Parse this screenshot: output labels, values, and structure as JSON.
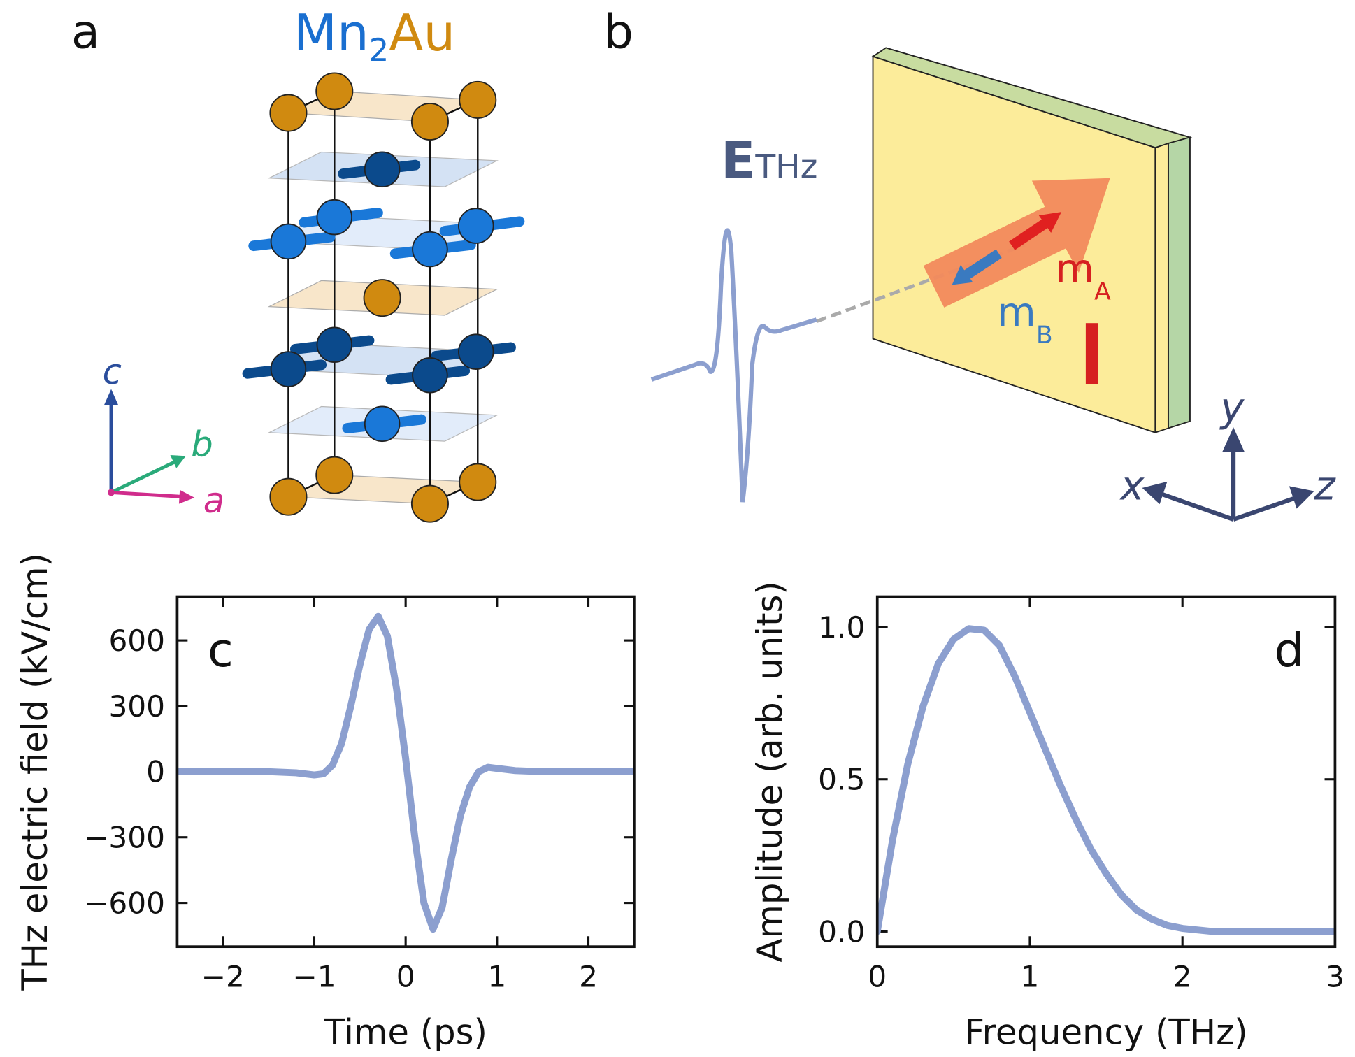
{
  "panel_a": {
    "label": "a",
    "title_parts": [
      "Mn",
      "2",
      "Au"
    ],
    "axes": [
      "c",
      "b",
      "a"
    ]
  },
  "panel_b": {
    "label": "b",
    "field": [
      "E",
      "THz"
    ],
    "m_a": [
      "m",
      "A"
    ],
    "m_b": [
      "m",
      "B"
    ],
    "axes": [
      "x",
      "y",
      "z"
    ]
  },
  "chart_data": [
    {
      "type": "line",
      "panel_label": "c",
      "xlabel": "Time (ps)",
      "ylabel": "THz electric field (kV/cm)",
      "xlim": [
        -2.5,
        2.5
      ],
      "ylim": [
        -800,
        800
      ],
      "xticks": [
        {
          "value": -2,
          "label": "−2"
        },
        {
          "value": -1,
          "label": "−1"
        },
        0,
        1,
        2
      ],
      "yticks": [
        {
          "value": -600,
          "label": "−600"
        },
        {
          "value": -300,
          "label": "−300"
        },
        0,
        300,
        600
      ],
      "x": [
        -2.5,
        -2.0,
        -1.5,
        -1.2,
        -1.0,
        -0.9,
        -0.8,
        -0.7,
        -0.6,
        -0.5,
        -0.4,
        -0.3,
        -0.2,
        -0.1,
        0,
        0.1,
        0.2,
        0.3,
        0.4,
        0.5,
        0.6,
        0.7,
        0.8,
        0.9,
        1.0,
        1.2,
        1.5,
        2.0,
        2.5
      ],
      "series": [
        {
          "color": "#8c9fcf",
          "values": [
            0,
            0,
            0,
            -5,
            -15,
            -10,
            30,
            130,
            300,
            490,
            650,
            710,
            620,
            380,
            60,
            -300,
            -600,
            -720,
            -620,
            -400,
            -200,
            -70,
            0,
            20,
            15,
            5,
            0,
            0,
            0
          ]
        }
      ]
    },
    {
      "type": "line",
      "panel_label": "d",
      "xlabel": "Frequency (THz)",
      "ylabel": "Amplitude (arb. units)",
      "xlim": [
        0,
        3
      ],
      "ylim": [
        -0.05,
        1.1
      ],
      "xticks": [
        0,
        1,
        2,
        3
      ],
      "yticks": [
        {
          "value": 0,
          "label": "0.0"
        },
        0.5,
        {
          "value": 1,
          "label": "1.0"
        }
      ],
      "x": [
        0,
        0.1,
        0.2,
        0.3,
        0.4,
        0.5,
        0.6,
        0.7,
        0.8,
        0.9,
        1.0,
        1.1,
        1.2,
        1.3,
        1.4,
        1.5,
        1.6,
        1.7,
        1.8,
        1.9,
        2.0,
        2.2,
        2.5,
        3.0
      ],
      "series": [
        {
          "color": "#8c9fcf",
          "values": [
            0,
            0.3,
            0.55,
            0.74,
            0.88,
            0.96,
            0.995,
            0.99,
            0.94,
            0.84,
            0.72,
            0.6,
            0.48,
            0.37,
            0.27,
            0.19,
            0.12,
            0.07,
            0.04,
            0.02,
            0.01,
            0,
            0,
            0
          ]
        }
      ]
    }
  ]
}
